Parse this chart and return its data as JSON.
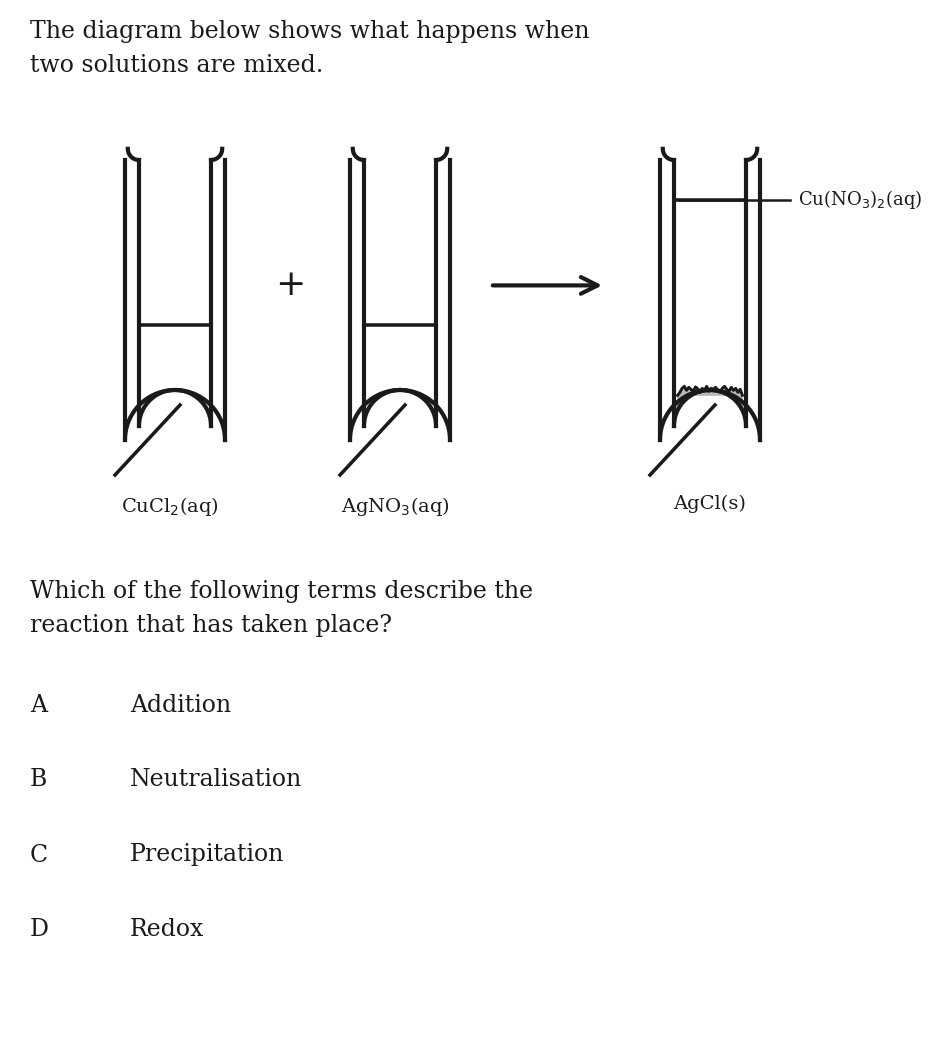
{
  "title_text": "The diagram below shows what happens when\ntwo solutions are mixed.",
  "question_text": "Which of the following terms describe the\nreaction that has taken place?",
  "options": [
    {
      "letter": "A",
      "text": "Addition"
    },
    {
      "letter": "B",
      "text": "Neutralisation"
    },
    {
      "letter": "C",
      "text": "Precipitation"
    },
    {
      "letter": "D",
      "text": "Redox"
    }
  ],
  "tube1_label": "CuCl$_2$(aq)",
  "tube2_label": "AgNO$_3$(aq)",
  "tube3_label": "AgCl(s)",
  "tube3_side_label": "Cu(NO$_3$)$_2$(aq)",
  "plus_sign": "+",
  "bg_color": "#ffffff",
  "line_color": "#1a1a1a",
  "precipitate_color": "#b8b8b8",
  "text_color": "#1a1a1a",
  "font_size_title": 17,
  "font_size_labels": 14,
  "font_size_options": 17
}
